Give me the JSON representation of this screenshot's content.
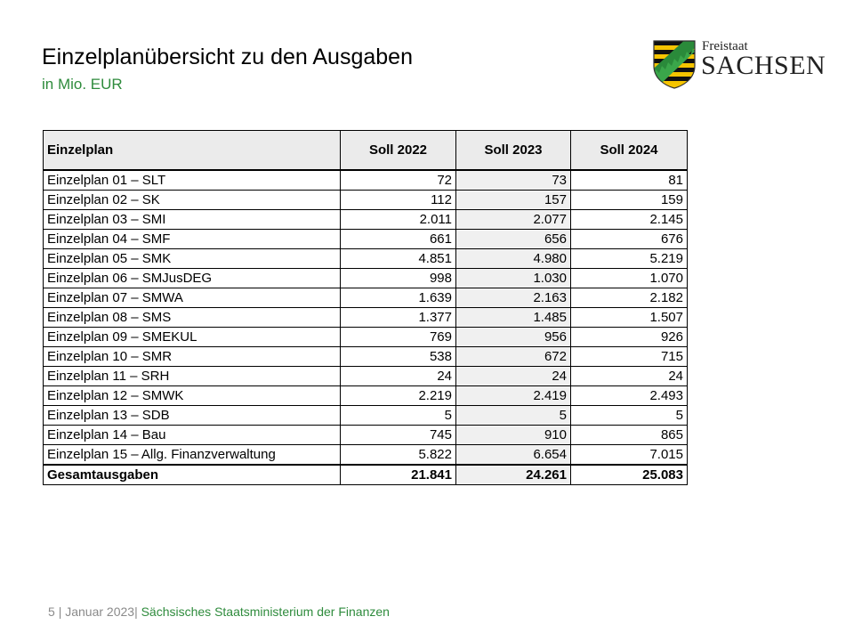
{
  "header": {
    "title": "Einzelplanübersicht zu den Ausgaben",
    "subtitle": "in Mio. EUR"
  },
  "logo": {
    "line1": "Freistaat",
    "line2": "SACHSEN",
    "colors": {
      "gold": "#f5c400",
      "black": "#111111",
      "green": "#2a8a3a"
    }
  },
  "table": {
    "headers": [
      "Einzelplan",
      "Soll 2022",
      "Soll 2023",
      "Soll 2024"
    ],
    "rows": [
      [
        "Einzelplan 01 – SLT",
        "72",
        "73",
        "81"
      ],
      [
        "Einzelplan 02 – SK",
        "112",
        "157",
        "159"
      ],
      [
        "Einzelplan 03 – SMI",
        "2.011",
        "2.077",
        "2.145"
      ],
      [
        "Einzelplan 04 – SMF",
        "661",
        "656",
        "676"
      ],
      [
        "Einzelplan 05 – SMK",
        "4.851",
        "4.980",
        "5.219"
      ],
      [
        "Einzelplan 06 – SMJusDEG",
        "998",
        "1.030",
        "1.070"
      ],
      [
        "Einzelplan 07 – SMWA",
        "1.639",
        "2.163",
        "2.182"
      ],
      [
        "Einzelplan 08 – SMS",
        "1.377",
        "1.485",
        "1.507"
      ],
      [
        "Einzelplan 09 – SMEKUL",
        "769",
        "956",
        "926"
      ],
      [
        "Einzelplan 10 – SMR",
        "538",
        "672",
        "715"
      ],
      [
        "Einzelplan 11 – SRH",
        "24",
        "24",
        "24"
      ],
      [
        "Einzelplan 12 – SMWK",
        "2.219",
        "2.419",
        "2.493"
      ],
      [
        "Einzelplan 13 – SDB",
        "5",
        "5",
        "5"
      ],
      [
        "Einzelplan 14 – Bau",
        "745",
        "910",
        "865"
      ],
      [
        "Einzelplan 15 – Allg. Finanzverwaltung",
        "5.822",
        "6.654",
        "7.015"
      ]
    ],
    "total": [
      "Gesamtausgaben",
      "21.841",
      "24.261",
      "25.083"
    ]
  },
  "footer": {
    "page": "5",
    "separator": "|",
    "date": "Januar 2023",
    "ministry": "Sächsisches Staatsministerium der Finanzen"
  }
}
